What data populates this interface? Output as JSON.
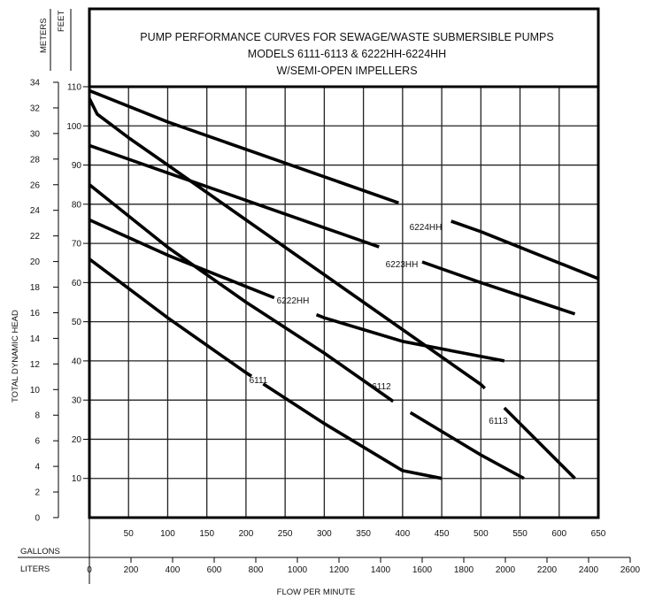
{
  "chart_data": {
    "type": "line",
    "title_lines": [
      "PUMP PERFORMANCE CURVES FOR SEWAGE/WASTE SUBMERSIBLE PUMPS",
      "MODELS 6111-6113 & 6222HH-6224HH",
      "W/SEMI-OPEN IMPELLERS"
    ],
    "xlabel": "FLOW PER MINUTE",
    "ylabel": "TOTAL DYNAMIC HEAD",
    "x_gallons": {
      "label": "GALLONS",
      "ticks": [
        "50",
        "100",
        "150",
        "200",
        "250",
        "300",
        "350",
        "400",
        "450",
        "500",
        "550",
        "600",
        "650"
      ],
      "range": [
        0,
        650
      ]
    },
    "x_liters": {
      "label": "LITERS",
      "ticks": [
        "0",
        "200",
        "400",
        "600",
        "800",
        "1000",
        "1200",
        "1400",
        "1600",
        "1800",
        "2000",
        "2200",
        "2400",
        "2600"
      ],
      "range": [
        0,
        2600
      ]
    },
    "y_feet": {
      "label": "FEET",
      "ticks": [
        "10",
        "20",
        "30",
        "40",
        "50",
        "60",
        "70",
        "80",
        "90",
        "100",
        "110"
      ],
      "range": [
        0,
        110
      ]
    },
    "y_meters": {
      "label": "METERS",
      "ticks": [
        "0",
        "2",
        "4",
        "6",
        "8",
        "10",
        "12",
        "14",
        "16",
        "18",
        "20",
        "22",
        "24",
        "26",
        "28",
        "30",
        "32",
        "34"
      ],
      "range": [
        0,
        34
      ]
    },
    "grid": true,
    "series": [
      {
        "name": "6111",
        "x": [
          0,
          100,
          200,
          300,
          400,
          450
        ],
        "y": [
          66,
          51,
          37,
          24,
          12,
          10
        ]
      },
      {
        "name": "6112",
        "x": [
          0,
          100,
          200,
          300,
          400,
          500,
          555
        ],
        "y": [
          85,
          69,
          55,
          42,
          28,
          16,
          10
        ]
      },
      {
        "name": "6113",
        "x": [
          0,
          10,
          50,
          100,
          200,
          300,
          400,
          500,
          620
        ],
        "y": [
          107,
          103,
          97,
          90,
          76,
          62,
          48,
          34,
          10
        ]
      },
      {
        "name": "6222HH",
        "x": [
          0,
          100,
          200,
          300,
          400,
          530
        ],
        "y": [
          76,
          67,
          59,
          51,
          45,
          40
        ]
      },
      {
        "name": "6223HH",
        "x": [
          0,
          100,
          200,
          300,
          400,
          500,
          620
        ],
        "y": [
          95,
          88,
          81,
          74,
          67,
          60,
          52
        ]
      },
      {
        "name": "6224HH",
        "x": [
          0,
          100,
          200,
          300,
          400,
          500,
          650
        ],
        "y": [
          109,
          101,
          94,
          87,
          80,
          73,
          61
        ]
      }
    ]
  },
  "curve_labels": [
    "6111",
    "6112",
    "6113",
    "6222HH",
    "6223HH",
    "6224HH"
  ]
}
